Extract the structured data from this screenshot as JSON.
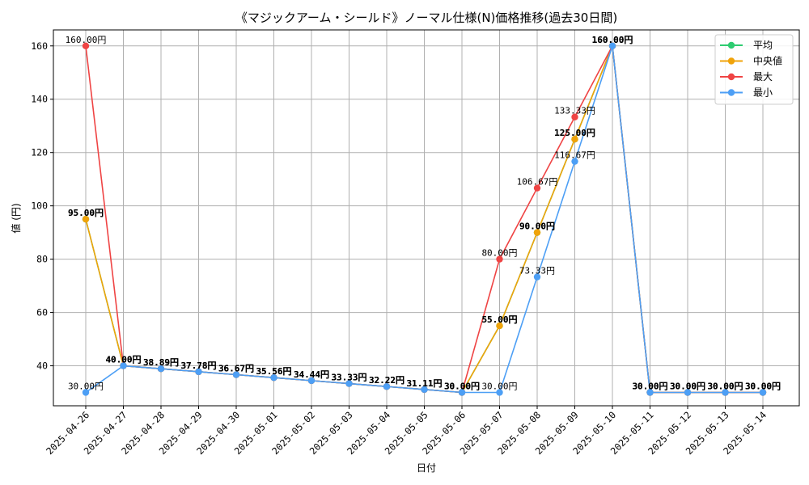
{
  "chart_data": {
    "type": "line",
    "title": "《マジックアーム・シールド》ノーマル仕様(N)価格推移(過去30日間)",
    "xlabel": "日付",
    "ylabel": "値 (円)",
    "ylim": [
      25,
      166
    ],
    "yticks": [
      40,
      60,
      80,
      100,
      120,
      140,
      160
    ],
    "grid": true,
    "legend_position": "top-right",
    "value_suffix": "円",
    "categories": [
      "2025-04-26",
      "2025-04-27",
      "2025-04-28",
      "2025-04-29",
      "2025-04-30",
      "2025-05-01",
      "2025-05-02",
      "2025-05-03",
      "2025-05-04",
      "2025-05-05",
      "2025-05-06",
      "2025-05-07",
      "2025-05-08",
      "2025-05-09",
      "2025-05-10",
      "2025-05-11",
      "2025-05-12",
      "2025-05-13",
      "2025-05-14"
    ],
    "series": [
      {
        "name": "平均",
        "color": "#2ecc71",
        "label_weight": "bold",
        "values": [
          95.0,
          40.0,
          38.89,
          37.78,
          36.67,
          35.56,
          34.44,
          33.33,
          32.22,
          31.11,
          30.0,
          55.0,
          90.0,
          125.0,
          160.0,
          30.0,
          30.0,
          30.0,
          30.0
        ]
      },
      {
        "name": "中央値",
        "color": "#f0a30a",
        "label_weight": "bold",
        "values": [
          95.0,
          40.0,
          38.89,
          37.78,
          36.67,
          35.56,
          34.44,
          33.33,
          32.22,
          31.11,
          30.0,
          55.0,
          90.0,
          125.0,
          160.0,
          30.0,
          30.0,
          30.0,
          30.0
        ]
      },
      {
        "name": "最大",
        "color": "#ef4444",
        "label_weight": "normal",
        "values": [
          160.0,
          40.0,
          38.89,
          37.78,
          36.67,
          35.56,
          34.44,
          33.33,
          32.22,
          31.11,
          30.0,
          80.0,
          106.67,
          133.33,
          160.0,
          30.0,
          30.0,
          30.0,
          30.0
        ]
      },
      {
        "name": "最小",
        "color": "#4d9ff5",
        "label_weight": "normal",
        "values": [
          30.0,
          40.0,
          38.89,
          37.78,
          36.67,
          35.56,
          34.44,
          33.33,
          32.22,
          31.11,
          30.0,
          30.0,
          73.33,
          116.67,
          160.0,
          30.0,
          30.0,
          30.0,
          30.0
        ]
      }
    ]
  }
}
